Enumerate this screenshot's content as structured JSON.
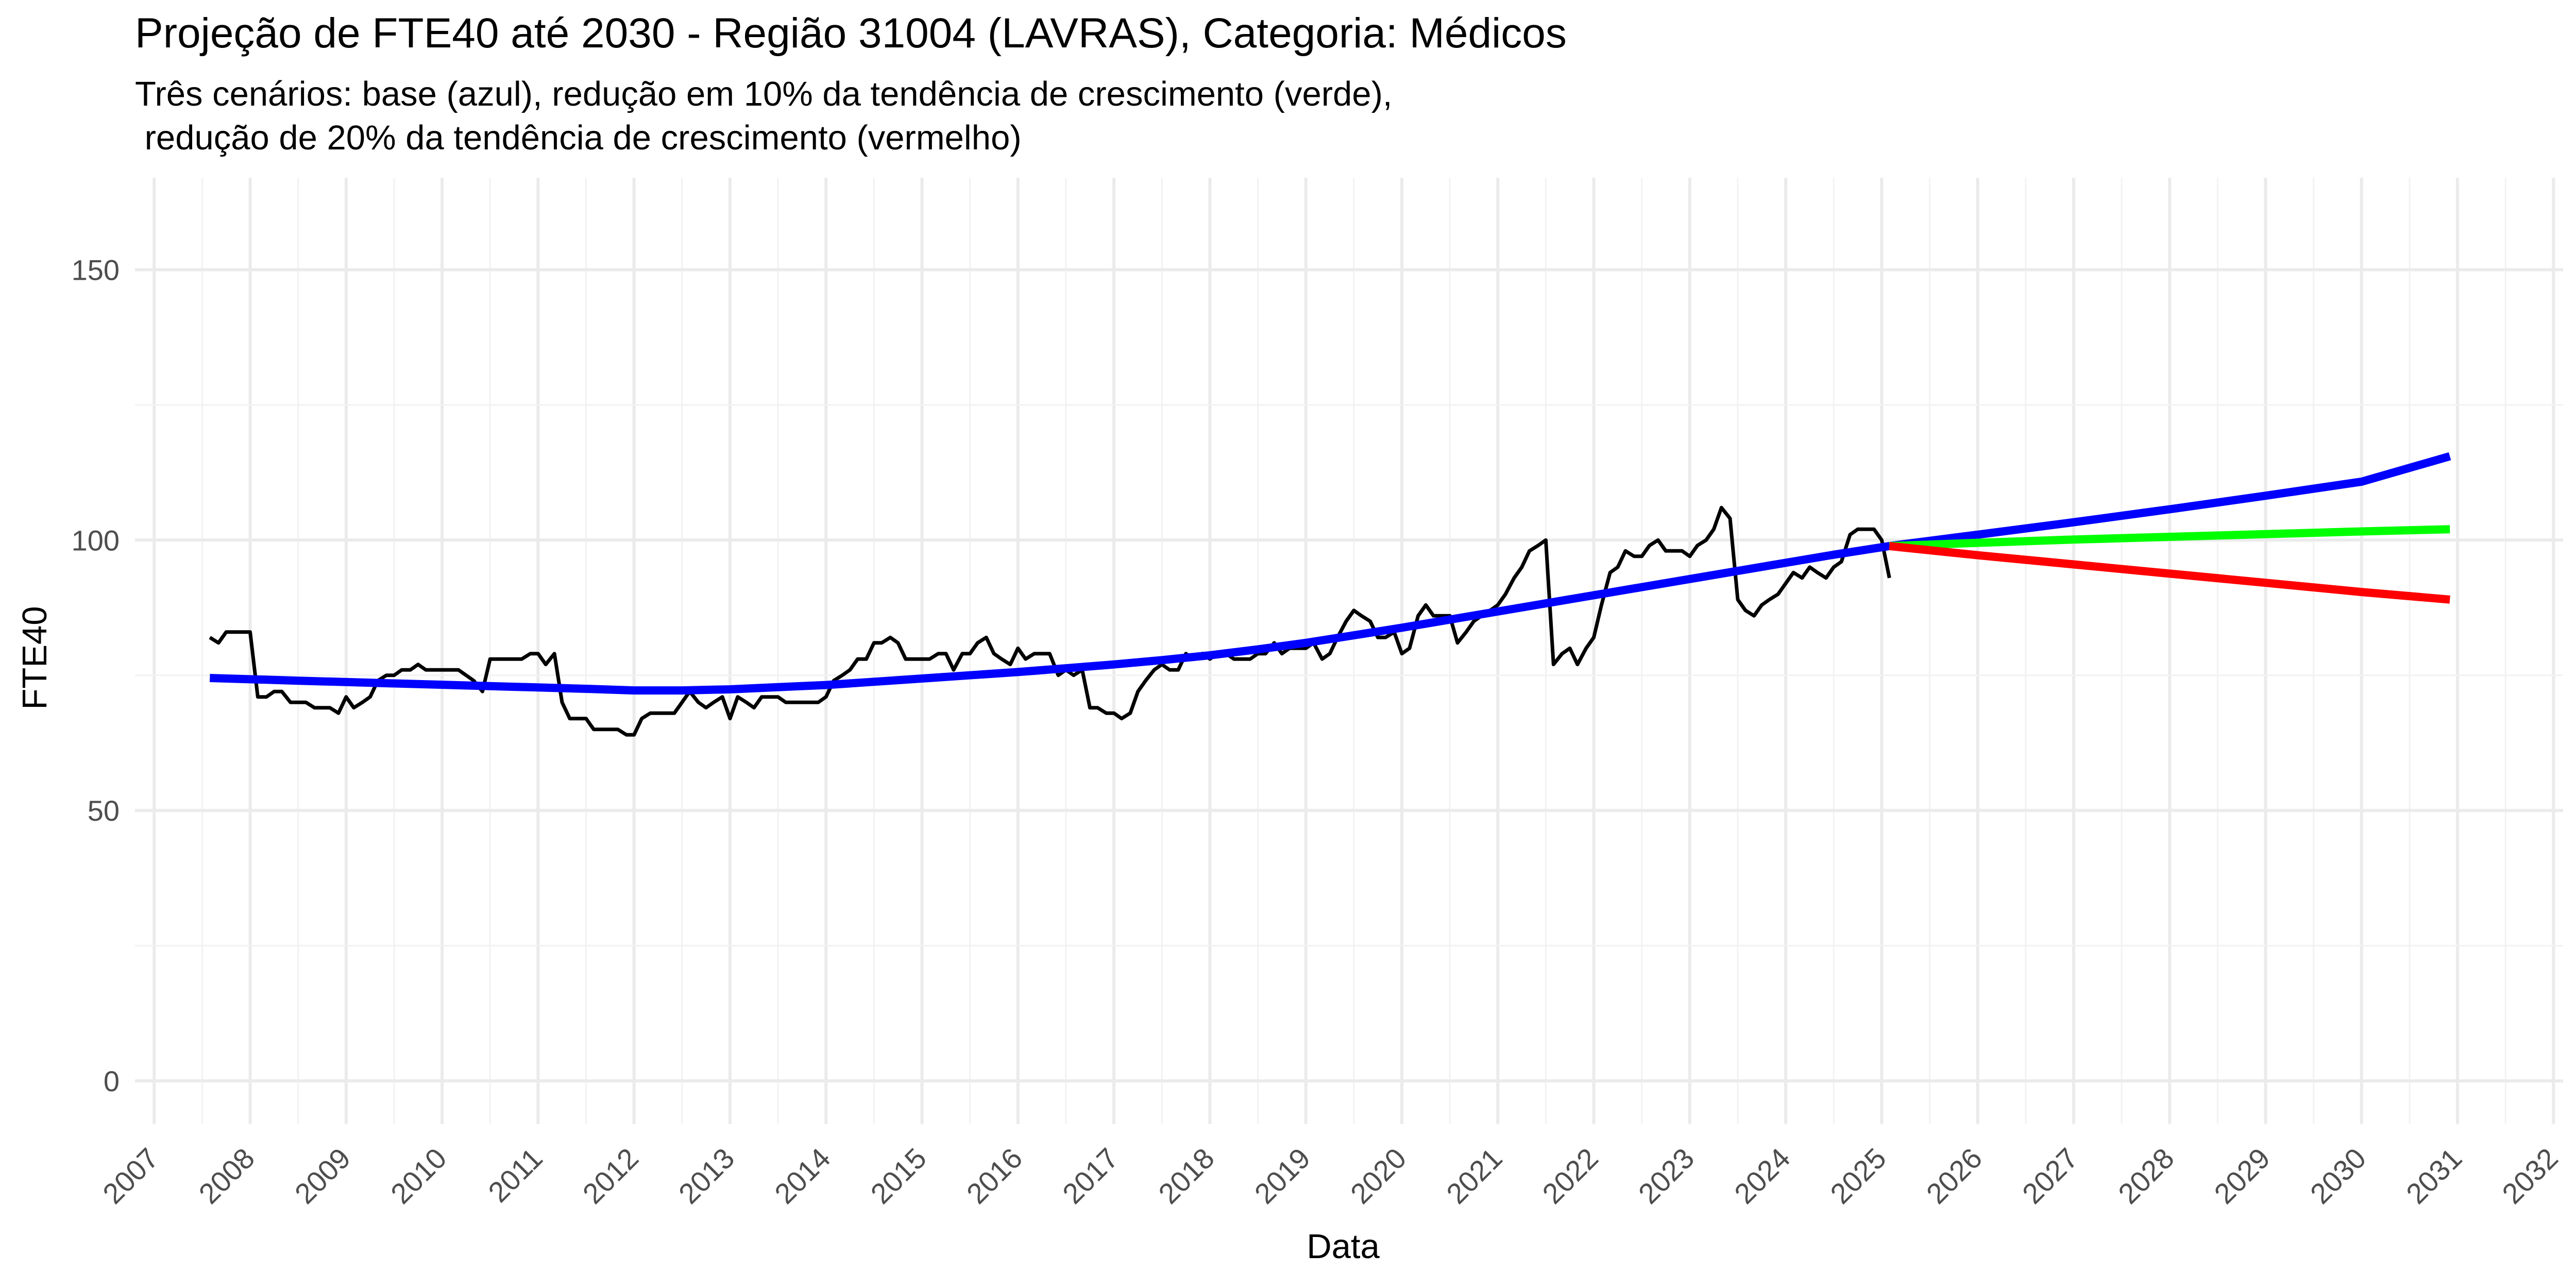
{
  "chart_data": {
    "type": "line",
    "title": "Projeção de FTE40 até 2030 - Região 31004 (LAVRAS), Categoria: Médicos",
    "subtitle_lines": [
      "Três cenários: base (azul), redução em 10% da tendência de crescimento (verde),",
      " redução de 20% da tendência de crescimento (vermelho)"
    ],
    "xlabel": "Data",
    "ylabel": "FTE40",
    "xlim": [
      2006.8,
      2032.1
    ],
    "ylim": [
      -8,
      167
    ],
    "y_ticks": [
      0,
      50,
      100,
      150
    ],
    "x_ticks": [
      "2007",
      "2008",
      "2009",
      "2010",
      "2011",
      "2012",
      "2013",
      "2014",
      "2015",
      "2016",
      "2017",
      "2018",
      "2019",
      "2020",
      "2021",
      "2022",
      "2023",
      "2024",
      "2025",
      "2026",
      "2027",
      "2028",
      "2029",
      "2030",
      "2031",
      "2032"
    ],
    "grid": true,
    "legend": "none",
    "series": [
      {
        "color": "#000000",
        "points": [
          [
            2007.58,
            82
          ],
          [
            2007.67,
            81
          ],
          [
            2007.75,
            83
          ],
          [
            2007.83,
            83
          ],
          [
            2007.92,
            83
          ],
          [
            2008.0,
            83
          ],
          [
            2008.08,
            71
          ],
          [
            2008.17,
            71
          ],
          [
            2008.25,
            72
          ],
          [
            2008.33,
            72
          ],
          [
            2008.42,
            70
          ],
          [
            2008.5,
            70
          ],
          [
            2008.58,
            70
          ],
          [
            2008.67,
            69
          ],
          [
            2008.75,
            69
          ],
          [
            2008.83,
            69
          ],
          [
            2008.92,
            68
          ],
          [
            2009.0,
            71
          ],
          [
            2009.08,
            69
          ],
          [
            2009.17,
            70
          ],
          [
            2009.25,
            71
          ],
          [
            2009.33,
            74
          ],
          [
            2009.42,
            75
          ],
          [
            2009.5,
            75
          ],
          [
            2009.58,
            76
          ],
          [
            2009.67,
            76
          ],
          [
            2009.75,
            77
          ],
          [
            2009.83,
            76
          ],
          [
            2009.92,
            76
          ],
          [
            2010.0,
            76
          ],
          [
            2010.08,
            76
          ],
          [
            2010.17,
            76
          ],
          [
            2010.25,
            75
          ],
          [
            2010.33,
            74
          ],
          [
            2010.42,
            72
          ],
          [
            2010.5,
            78
          ],
          [
            2010.58,
            78
          ],
          [
            2010.67,
            78
          ],
          [
            2010.75,
            78
          ],
          [
            2010.83,
            78
          ],
          [
            2010.92,
            79
          ],
          [
            2011.0,
            79
          ],
          [
            2011.08,
            77
          ],
          [
            2011.17,
            79
          ],
          [
            2011.25,
            70
          ],
          [
            2011.33,
            67
          ],
          [
            2011.42,
            67
          ],
          [
            2011.5,
            67
          ],
          [
            2011.58,
            65
          ],
          [
            2011.67,
            65
          ],
          [
            2011.75,
            65
          ],
          [
            2011.83,
            65
          ],
          [
            2011.92,
            64
          ],
          [
            2012.0,
            64
          ],
          [
            2012.08,
            67
          ],
          [
            2012.17,
            68
          ],
          [
            2012.25,
            68
          ],
          [
            2012.33,
            68
          ],
          [
            2012.42,
            68
          ],
          [
            2012.5,
            70
          ],
          [
            2012.58,
            72
          ],
          [
            2012.67,
            70
          ],
          [
            2012.75,
            69
          ],
          [
            2012.83,
            70
          ],
          [
            2012.92,
            71
          ],
          [
            2013.0,
            67
          ],
          [
            2013.08,
            71
          ],
          [
            2013.17,
            70
          ],
          [
            2013.25,
            69
          ],
          [
            2013.33,
            71
          ],
          [
            2013.42,
            71
          ],
          [
            2013.5,
            71
          ],
          [
            2013.58,
            70
          ],
          [
            2013.67,
            70
          ],
          [
            2013.75,
            70
          ],
          [
            2013.83,
            70
          ],
          [
            2013.92,
            70
          ],
          [
            2014.0,
            71
          ],
          [
            2014.08,
            74
          ],
          [
            2014.17,
            75
          ],
          [
            2014.25,
            76
          ],
          [
            2014.33,
            78
          ],
          [
            2014.42,
            78
          ],
          [
            2014.5,
            81
          ],
          [
            2014.58,
            81
          ],
          [
            2014.67,
            82
          ],
          [
            2014.75,
            81
          ],
          [
            2014.83,
            78
          ],
          [
            2014.92,
            78
          ],
          [
            2015.0,
            78
          ],
          [
            2015.08,
            78
          ],
          [
            2015.17,
            79
          ],
          [
            2015.25,
            79
          ],
          [
            2015.33,
            76
          ],
          [
            2015.42,
            79
          ],
          [
            2015.5,
            79
          ],
          [
            2015.58,
            81
          ],
          [
            2015.67,
            82
          ],
          [
            2015.75,
            79
          ],
          [
            2015.83,
            78
          ],
          [
            2015.92,
            77
          ],
          [
            2016.0,
            80
          ],
          [
            2016.08,
            78
          ],
          [
            2016.17,
            79
          ],
          [
            2016.25,
            79
          ],
          [
            2016.33,
            79
          ],
          [
            2016.42,
            75
          ],
          [
            2016.5,
            76
          ],
          [
            2016.58,
            75
          ],
          [
            2016.67,
            76
          ],
          [
            2016.75,
            69
          ],
          [
            2016.83,
            69
          ],
          [
            2016.92,
            68
          ],
          [
            2017.0,
            68
          ],
          [
            2017.08,
            67
          ],
          [
            2017.17,
            68
          ],
          [
            2017.25,
            72
          ],
          [
            2017.33,
            74
          ],
          [
            2017.42,
            76
          ],
          [
            2017.5,
            77
          ],
          [
            2017.58,
            76
          ],
          [
            2017.67,
            76
          ],
          [
            2017.75,
            79
          ],
          [
            2017.83,
            78
          ],
          [
            2017.92,
            79
          ],
          [
            2018.0,
            78
          ],
          [
            2018.08,
            79
          ],
          [
            2018.17,
            79
          ],
          [
            2018.25,
            78
          ],
          [
            2018.33,
            78
          ],
          [
            2018.42,
            78
          ],
          [
            2018.5,
            79
          ],
          [
            2018.58,
            79
          ],
          [
            2018.67,
            81
          ],
          [
            2018.75,
            79
          ],
          [
            2018.83,
            80
          ],
          [
            2018.92,
            80
          ],
          [
            2019.0,
            80
          ],
          [
            2019.08,
            81
          ],
          [
            2019.17,
            78
          ],
          [
            2019.25,
            79
          ],
          [
            2019.33,
            82
          ],
          [
            2019.42,
            85
          ],
          [
            2019.5,
            87
          ],
          [
            2019.58,
            86
          ],
          [
            2019.67,
            85
          ],
          [
            2019.75,
            82
          ],
          [
            2019.83,
            82
          ],
          [
            2019.92,
            83
          ],
          [
            2020.0,
            79
          ],
          [
            2020.08,
            80
          ],
          [
            2020.17,
            86
          ],
          [
            2020.25,
            88
          ],
          [
            2020.33,
            86
          ],
          [
            2020.42,
            86
          ],
          [
            2020.5,
            86
          ],
          [
            2020.58,
            81
          ],
          [
            2020.67,
            83
          ],
          [
            2020.75,
            85
          ],
          [
            2020.83,
            86
          ],
          [
            2020.92,
            87
          ],
          [
            2021.0,
            88
          ],
          [
            2021.08,
            90
          ],
          [
            2021.17,
            93
          ],
          [
            2021.25,
            95
          ],
          [
            2021.33,
            98
          ],
          [
            2021.42,
            99
          ],
          [
            2021.5,
            100
          ],
          [
            2021.58,
            77
          ],
          [
            2021.67,
            79
          ],
          [
            2021.75,
            80
          ],
          [
            2021.83,
            77
          ],
          [
            2021.92,
            80
          ],
          [
            2022.0,
            82
          ],
          [
            2022.08,
            88
          ],
          [
            2022.17,
            94
          ],
          [
            2022.25,
            95
          ],
          [
            2022.33,
            98
          ],
          [
            2022.42,
            97
          ],
          [
            2022.5,
            97
          ],
          [
            2022.58,
            99
          ],
          [
            2022.67,
            100
          ],
          [
            2022.75,
            98
          ],
          [
            2022.83,
            98
          ],
          [
            2022.92,
            98
          ],
          [
            2023.0,
            97
          ],
          [
            2023.08,
            99
          ],
          [
            2023.17,
            100
          ],
          [
            2023.25,
            102
          ],
          [
            2023.33,
            106
          ],
          [
            2023.42,
            104
          ],
          [
            2023.5,
            89
          ],
          [
            2023.58,
            87
          ],
          [
            2023.67,
            86
          ],
          [
            2023.75,
            88
          ],
          [
            2023.83,
            89
          ],
          [
            2023.92,
            90
          ],
          [
            2024.0,
            92
          ],
          [
            2024.08,
            94
          ],
          [
            2024.17,
            93
          ],
          [
            2024.25,
            95
          ],
          [
            2024.33,
            94
          ],
          [
            2024.42,
            93
          ],
          [
            2024.5,
            95
          ],
          [
            2024.58,
            96
          ],
          [
            2024.67,
            101
          ],
          [
            2024.75,
            102
          ],
          [
            2024.83,
            102
          ],
          [
            2024.92,
            102
          ],
          [
            2025.0,
            100
          ],
          [
            2025.08,
            93
          ]
        ]
      },
      {
        "color": "#0000ff",
        "points": [
          [
            2007.58,
            74.5
          ],
          [
            2008.5,
            74.0
          ],
          [
            2009.5,
            73.5
          ],
          [
            2010.5,
            73.0
          ],
          [
            2011.5,
            72.5
          ],
          [
            2012.0,
            72.2
          ],
          [
            2012.5,
            72.2
          ],
          [
            2013.0,
            72.4
          ],
          [
            2013.5,
            72.8
          ],
          [
            2014.0,
            73.2
          ],
          [
            2014.5,
            73.8
          ],
          [
            2015.0,
            74.4
          ],
          [
            2015.5,
            75.0
          ],
          [
            2016.0,
            75.6
          ],
          [
            2016.5,
            76.3
          ],
          [
            2017.0,
            77.0
          ],
          [
            2017.5,
            77.8
          ],
          [
            2018.0,
            78.7
          ],
          [
            2018.5,
            79.8
          ],
          [
            2019.0,
            81.0
          ],
          [
            2019.5,
            82.4
          ],
          [
            2020.0,
            83.8
          ],
          [
            2020.5,
            85.3
          ],
          [
            2021.0,
            86.8
          ],
          [
            2021.5,
            88.3
          ],
          [
            2022.0,
            89.8
          ],
          [
            2022.5,
            91.3
          ],
          [
            2023.0,
            92.8
          ],
          [
            2023.5,
            94.3
          ],
          [
            2024.0,
            95.8
          ],
          [
            2024.5,
            97.3
          ],
          [
            2025.08,
            98.9
          ],
          [
            2026.0,
            101.0
          ],
          [
            2027.0,
            103.3
          ],
          [
            2028.0,
            105.7
          ],
          [
            2029.0,
            108.2
          ],
          [
            2030.0,
            110.8
          ],
          [
            2030.92,
            115.5
          ]
        ]
      },
      {
        "color": "#00ff00",
        "points": [
          [
            2025.08,
            98.9
          ],
          [
            2026.0,
            99.5
          ],
          [
            2027.0,
            100.1
          ],
          [
            2028.0,
            100.6
          ],
          [
            2029.0,
            101.1
          ],
          [
            2030.0,
            101.6
          ],
          [
            2030.92,
            102.0
          ]
        ]
      },
      {
        "color": "#ff0000",
        "points": [
          [
            2025.08,
            98.9
          ],
          [
            2026.0,
            97.2
          ],
          [
            2027.0,
            95.5
          ],
          [
            2028.0,
            93.8
          ],
          [
            2029.0,
            92.1
          ],
          [
            2030.0,
            90.4
          ],
          [
            2030.92,
            89.0
          ]
        ]
      }
    ]
  }
}
